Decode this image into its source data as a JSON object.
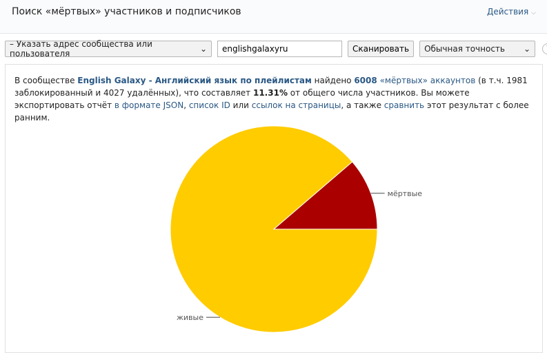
{
  "header": {
    "title": "Поиск «мёртвых» участников и подписчиков",
    "actions_label": "Действия",
    "actions_icon": "chevron-down-icon"
  },
  "toolbar": {
    "source_select": "– Указать адрес сообщества или пользователя",
    "address_value": "englishgalaxyru",
    "scan_label": "Сканировать",
    "accuracy_select": "Обычная точность",
    "help_label": "?"
  },
  "result": {
    "t1": "В сообществе ",
    "group": "English Galaxy - Английский язык по плейлистам",
    "t2": " найдено ",
    "count": "6008",
    "t3": " ",
    "dead_link": "«мёртвых» аккаунтов",
    "t4": " (в т.ч. 1981 заблокированный и 4027 удалённых), что составляет ",
    "percent": "11.31%",
    "t5": " от общего числа участников. Вы можете экспортировать отчёт ",
    "json_link": "в формате JSON",
    "t6": ", ",
    "ids_link": "список ID",
    "t7": " или ",
    "links_link": "ссылок на страницы",
    "t8": ", а также ",
    "compare_link": "сравнить",
    "t9": " этот результат с более ранним."
  },
  "chart_data": {
    "type": "pie",
    "slices": [
      {
        "label": "мёртвые",
        "percent": 11.31,
        "color": "#aa0000"
      },
      {
        "label": "живые",
        "percent": 88.69,
        "color": "#ffcc00"
      }
    ]
  }
}
